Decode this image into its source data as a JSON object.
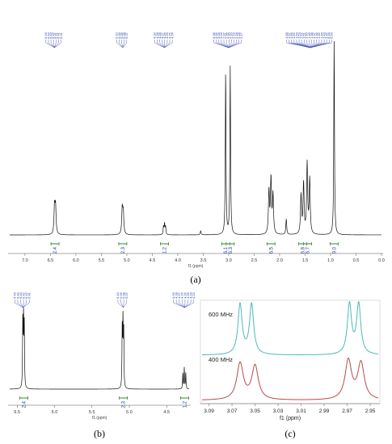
{
  "chart_data": [
    {
      "id": "a",
      "type": "line",
      "panel_label": "(a)",
      "xlabel": "f1 (ppm)",
      "x_reversed": true,
      "xlim": [
        0.0,
        7.3
      ],
      "x_ticks": [
        "7.0",
        "6.5",
        "6.0",
        "5.5",
        "5.0",
        "4.5",
        "4.0",
        "3.5",
        "3.0",
        "2.5",
        "2.0",
        "1.5",
        "1.0",
        "0.5",
        "0.0"
      ],
      "peaks": [
        {
          "ppm": 6.42,
          "height": 0.14,
          "width": 0.012
        },
        {
          "ppm": 6.4,
          "height": 0.14,
          "width": 0.012
        },
        {
          "ppm": 5.09,
          "height": 0.13,
          "width": 0.012
        },
        {
          "ppm": 5.07,
          "height": 0.11,
          "width": 0.012
        },
        {
          "ppm": 4.28,
          "height": 0.04,
          "width": 0.008
        },
        {
          "ppm": 4.26,
          "height": 0.055,
          "width": 0.008
        },
        {
          "ppm": 4.24,
          "height": 0.04,
          "width": 0.008
        },
        {
          "ppm": 3.55,
          "height": 0.02,
          "width": 0.01
        },
        {
          "ppm": 3.06,
          "height": 0.84,
          "width": 0.008
        },
        {
          "ppm": 2.97,
          "height": 0.86,
          "width": 0.008
        },
        {
          "ppm": 2.21,
          "height": 0.22,
          "width": 0.012
        },
        {
          "ppm": 2.17,
          "height": 0.28,
          "width": 0.012
        },
        {
          "ppm": 2.13,
          "height": 0.2,
          "width": 0.012
        },
        {
          "ppm": 1.87,
          "height": 0.08,
          "width": 0.01
        },
        {
          "ppm": 1.58,
          "height": 0.2,
          "width": 0.012
        },
        {
          "ppm": 1.53,
          "height": 0.26,
          "width": 0.012
        },
        {
          "ppm": 1.46,
          "height": 0.36,
          "width": 0.012
        },
        {
          "ppm": 1.41,
          "height": 0.28,
          "width": 0.012
        },
        {
          "ppm": 0.93,
          "height": 1.0,
          "width": 0.008
        }
      ],
      "integrals": [
        {
          "ppm": 6.41,
          "label": "2.4"
        },
        {
          "ppm": 5.08,
          "label": "2.3"
        },
        {
          "ppm": 4.26,
          "label": "1.2"
        },
        {
          "ppm": 3.06,
          "label": "6.1"
        },
        {
          "ppm": 2.97,
          "label": "6.3"
        },
        {
          "ppm": 2.17,
          "label": "6.5"
        },
        {
          "ppm": 1.55,
          "label": "6.8"
        },
        {
          "ppm": 1.45,
          "label": "6.7"
        },
        {
          "ppm": 0.93,
          "label": "9.0"
        }
      ],
      "peak_label_groups": [
        {
          "center_ppm": 6.42,
          "labels": [
            "6.43",
            "6.43",
            "6.43",
            "6.42",
            "6.41",
            "6.41",
            "6.41"
          ]
        },
        {
          "center_ppm": 5.08,
          "labels": [
            "5.10",
            "5.09",
            "5.08",
            "5.08",
            "5.07"
          ]
        },
        {
          "center_ppm": 4.26,
          "labels": [
            "4.29",
            "4.28",
            "4.28",
            "4.27",
            "4.26",
            "4.26",
            "4.25",
            "4.24"
          ]
        },
        {
          "center_ppm": 3.0,
          "labels": [
            "3.06",
            "3.05",
            "3.04",
            "3.04",
            "2.97",
            "2.96",
            "2.96",
            "2.20",
            "2.19",
            "2.18",
            "2.18",
            "2.17"
          ]
        },
        {
          "center_ppm": 1.4,
          "labels": [
            "1.58",
            "1.57",
            "1.56",
            "1.55",
            "1.54",
            "1.53",
            "1.52",
            "1.51",
            "1.50",
            "1.49",
            "1.48",
            "1.47",
            "1.46",
            "1.45",
            "1.44",
            "1.43",
            "1.42",
            "0.94",
            "0.93"
          ]
        }
      ]
    },
    {
      "id": "b",
      "type": "line",
      "panel_label": "(b)",
      "xlabel": "f1 (ppm)",
      "x_reversed": true,
      "xlim": [
        4.2,
        6.6
      ],
      "x_ticks": [
        "6.5",
        "6.0",
        "5.5",
        "5.0",
        "4.5"
      ],
      "peaks": [
        {
          "ppm": 6.425,
          "height": 0.9,
          "width": 0.004
        },
        {
          "ppm": 6.415,
          "height": 0.92,
          "width": 0.004
        },
        {
          "ppm": 6.405,
          "height": 0.85,
          "width": 0.004
        },
        {
          "ppm": 5.095,
          "height": 0.82,
          "width": 0.004
        },
        {
          "ppm": 5.085,
          "height": 0.88,
          "width": 0.004
        },
        {
          "ppm": 5.075,
          "height": 0.78,
          "width": 0.004
        },
        {
          "ppm": 4.285,
          "height": 0.22,
          "width": 0.004
        },
        {
          "ppm": 4.265,
          "height": 0.3,
          "width": 0.004
        },
        {
          "ppm": 4.245,
          "height": 0.22,
          "width": 0.004
        }
      ],
      "integrals": [
        {
          "ppm": 6.41,
          "label": "2.4"
        },
        {
          "ppm": 5.08,
          "label": "2.3"
        },
        {
          "ppm": 4.26,
          "label": "1.2"
        }
      ],
      "peak_label_groups": [
        {
          "center_ppm": 6.42,
          "labels": [
            "6.43",
            "6.43",
            "6.43",
            "6.42",
            "6.42",
            "6.41"
          ]
        },
        {
          "center_ppm": 5.08,
          "labels": [
            "5.10",
            "5.09",
            "5.08",
            "5.07"
          ]
        },
        {
          "center_ppm": 4.26,
          "labels": [
            "4.29",
            "4.28",
            "4.27",
            "4.26",
            "4.26",
            "4.25",
            "4.24",
            "4.23"
          ]
        }
      ]
    },
    {
      "id": "c",
      "type": "line",
      "panel_label": "(c)",
      "xlabel": "f1 (ppm)",
      "x_reversed": true,
      "xlim": [
        2.943,
        3.096
      ],
      "x_ticks": [
        "3.09",
        "3.07",
        "3.05",
        "3.03",
        "3.01",
        "2.99",
        "2.97",
        "2.95"
      ],
      "series": [
        {
          "name": "600 MHz",
          "color": "#4fb8b8",
          "peaks": [
            {
              "ppm": 3.063,
              "height": 1.0,
              "width": 0.0022
            },
            {
              "ppm": 3.053,
              "height": 1.0,
              "width": 0.0022
            },
            {
              "ppm": 2.968,
              "height": 1.0,
              "width": 0.0022
            },
            {
              "ppm": 2.96,
              "height": 1.0,
              "width": 0.0022
            }
          ]
        },
        {
          "name": "400 MHz",
          "color": "#b84a4a",
          "peaks": [
            {
              "ppm": 3.063,
              "height": 0.82,
              "width": 0.0034
            },
            {
              "ppm": 3.05,
              "height": 0.76,
              "width": 0.0034
            },
            {
              "ppm": 2.969,
              "height": 0.88,
              "width": 0.0034
            },
            {
              "ppm": 2.958,
              "height": 0.82,
              "width": 0.0034
            }
          ]
        }
      ]
    }
  ]
}
